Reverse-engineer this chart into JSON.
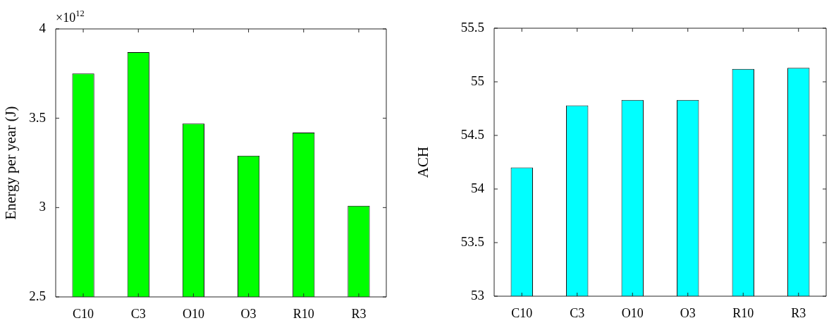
{
  "chart_data": [
    {
      "type": "bar",
      "ylabel": "Energy per year (J)",
      "categories": [
        "C10",
        "C3",
        "O10",
        "O3",
        "R10",
        "R3"
      ],
      "values": [
        3.75,
        3.87,
        3.47,
        3.29,
        3.42,
        3.01
      ],
      "color": "#00ff00",
      "ylim": [
        2.5,
        4
      ],
      "yticks": [
        2.5,
        3,
        3.5,
        4
      ],
      "annotations": [
        "×10$^{12}$"
      ]
    },
    {
      "type": "bar",
      "ylabel": "ACH",
      "categories": [
        "C10",
        "C3",
        "O10",
        "O3",
        "R10",
        "R3"
      ],
      "values": [
        54.2,
        54.78,
        54.83,
        54.83,
        55.12,
        55.13
      ],
      "color": "#00ffff",
      "ylim": [
        53,
        55.5
      ],
      "yticks": [
        53,
        53.5,
        54,
        54.5,
        55,
        55.5
      ]
    }
  ]
}
